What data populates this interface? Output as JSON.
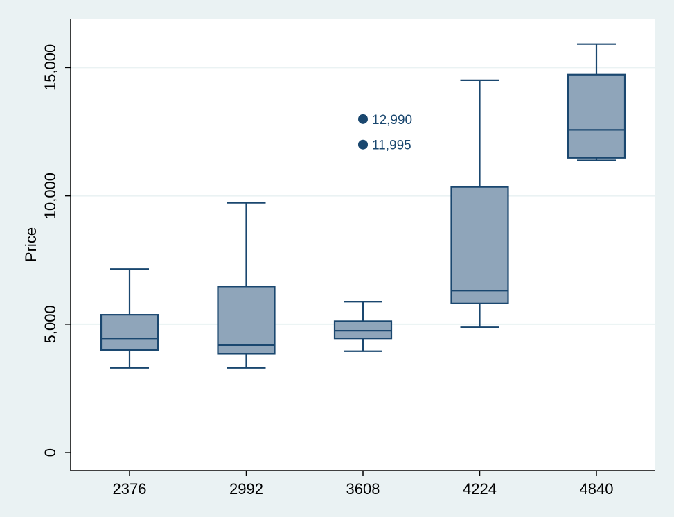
{
  "chart_data": {
    "type": "box",
    "title": "",
    "xlabel": "",
    "ylabel": "Price",
    "ylim": [
      -700,
      16900
    ],
    "yticks": [
      {
        "value": 0,
        "label": "0"
      },
      {
        "value": 5000,
        "label": "5,000"
      },
      {
        "value": 10000,
        "label": "10,000"
      },
      {
        "value": 15000,
        "label": "15,000"
      }
    ],
    "grid": true,
    "legend": "none",
    "colors": {
      "plot_background": "#ffffff",
      "figure_background": "#eaf2f3",
      "box_fill": "#8fa5ba",
      "box_stroke": "#1a476f",
      "gridline": "#eaf2f3",
      "axis": "#000000"
    },
    "categories": [
      "2376",
      "2992",
      "3608",
      "4224",
      "4840"
    ],
    "boxes": [
      {
        "category": "2376",
        "whisker_low": 3300,
        "q1": 4000,
        "median": 4450,
        "q3": 5370,
        "whisker_high": 7150,
        "outliers": []
      },
      {
        "category": "2992",
        "whisker_low": 3300,
        "q1": 3850,
        "median": 4190,
        "q3": 6470,
        "whisker_high": 9730,
        "outliers": []
      },
      {
        "category": "3608",
        "whisker_low": 3950,
        "q1": 4450,
        "median": 4750,
        "q3": 5120,
        "whisker_high": 5880,
        "outliers": [
          {
            "value": 12990,
            "label": "12,990"
          },
          {
            "value": 11995,
            "label": "11,995"
          }
        ]
      },
      {
        "category": "4224",
        "whisker_low": 4880,
        "q1": 5810,
        "median": 6310,
        "q3": 10350,
        "whisker_high": 14500,
        "outliers": []
      },
      {
        "category": "4840",
        "whisker_low": 11380,
        "q1": 11480,
        "median": 12570,
        "q3": 14720,
        "whisker_high": 15910,
        "outliers": []
      }
    ]
  }
}
